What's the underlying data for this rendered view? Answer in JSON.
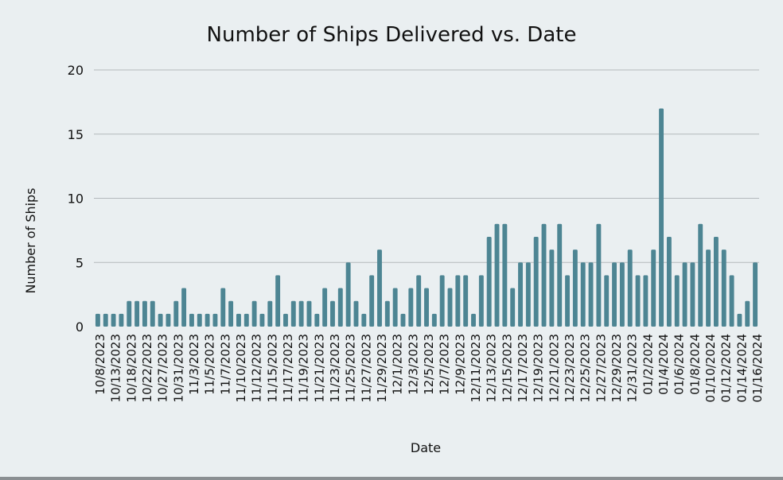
{
  "chart_data": {
    "type": "bar",
    "title": "Number of Ships Delivered vs. Date",
    "xlabel": "Date",
    "ylabel": "Number of Ships",
    "ylim": [
      0,
      20
    ],
    "yticks": [
      0,
      5,
      10,
      15,
      20
    ],
    "grid": true,
    "bar_color": "#4d8593",
    "grid_color": "#b4b9bc",
    "background": "#eaeff1",
    "tick_labels": [
      "10/8/2023",
      "10/13/2023",
      "10/18/2023",
      "10/22/2023",
      "10/27/2023",
      "10/31/2023",
      "11/3/2023",
      "11/5/2023",
      "11/7/2023",
      "11/10/2023",
      "11/12/2023",
      "11/15/2023",
      "11/17/2023",
      "11/19/2023",
      "11/21/2023",
      "11/23/2023",
      "11/25/2023",
      "11/27/2023",
      "11/29/2023",
      "12/1/2023",
      "12/3/2023",
      "12/5/2023",
      "12/7/2023",
      "12/9/2023",
      "12/11/2023",
      "12/13/2023",
      "12/15/2023",
      "12/17/2023",
      "12/19/2023",
      "12/21/2023",
      "12/23/2023",
      "12/25/2023",
      "12/27/2023",
      "12/29/2023",
      "12/31/2023",
      "01/2/2024",
      "01/4/2024",
      "01/6/2024",
      "01/8/2024",
      "01/10/2024",
      "01/12/2024",
      "01/14/2024",
      "01/16/2024"
    ],
    "values": [
      1,
      1,
      1,
      1,
      2,
      2,
      2,
      2,
      1,
      1,
      2,
      3,
      1,
      1,
      1,
      1,
      3,
      2,
      1,
      1,
      2,
      1,
      2,
      4,
      1,
      2,
      2,
      2,
      1,
      3,
      2,
      3,
      5,
      2,
      1,
      4,
      6,
      2,
      3,
      1,
      3,
      4,
      3,
      1,
      4,
      3,
      4,
      4,
      1,
      4,
      7,
      8,
      8,
      3,
      5,
      5,
      7,
      8,
      6,
      8,
      4,
      6,
      5,
      5,
      8,
      4,
      5,
      5,
      6,
      4,
      4,
      6,
      17,
      7,
      4,
      5,
      5,
      8,
      6,
      7,
      6,
      4,
      1,
      2,
      5
    ]
  }
}
